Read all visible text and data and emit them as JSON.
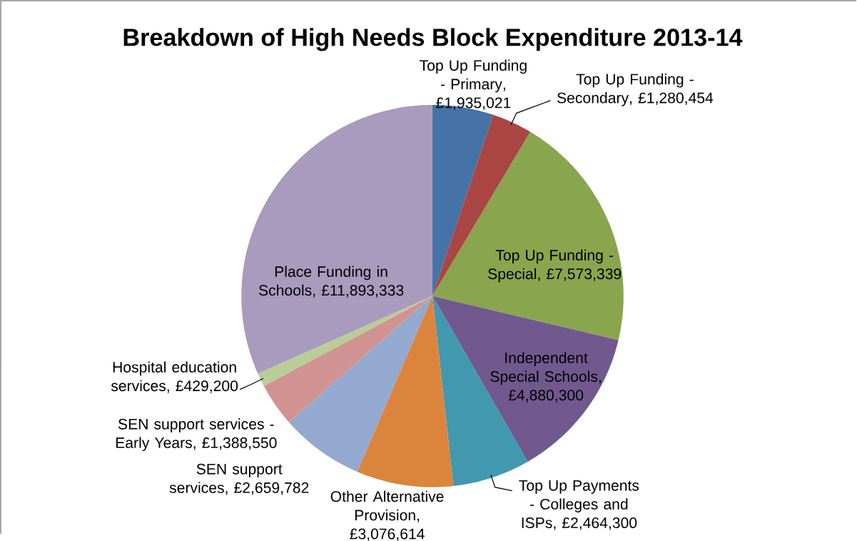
{
  "chart_data": {
    "type": "pie",
    "title": "Breakdown of High Needs Block Expenditure 2013-14",
    "categories": [
      "Top Up Funding - Primary",
      "Top Up Funding - Secondary",
      "Top Up Funding - Special",
      "Independent Special Schools",
      "Top Up Payments - Colleges and ISPs",
      "Other Alternative Provision",
      "SEN support services",
      "SEN support services - Early Years",
      "Hospital education services",
      "Place Funding in Schools"
    ],
    "values": [
      1935021,
      1280454,
      7573339,
      4880300,
      2464300,
      3076614,
      2659782,
      1388550,
      429200,
      11893333
    ],
    "value_labels": [
      ", £1,935,021",
      ", £1,280,454",
      ", £7,573,339",
      ", £4,880,300",
      ", £2,464,300",
      ", £3,076,614",
      ", £2,659,782",
      ", £1,388,550",
      ", £429,200",
      ", £11,893,333"
    ],
    "colors": [
      "#4572a7",
      "#aa4643",
      "#89a54e",
      "#71588f",
      "#4198af",
      "#db843d",
      "#93a9cf",
      "#d19392",
      "#b9cd96",
      "#a99bbd"
    ]
  }
}
